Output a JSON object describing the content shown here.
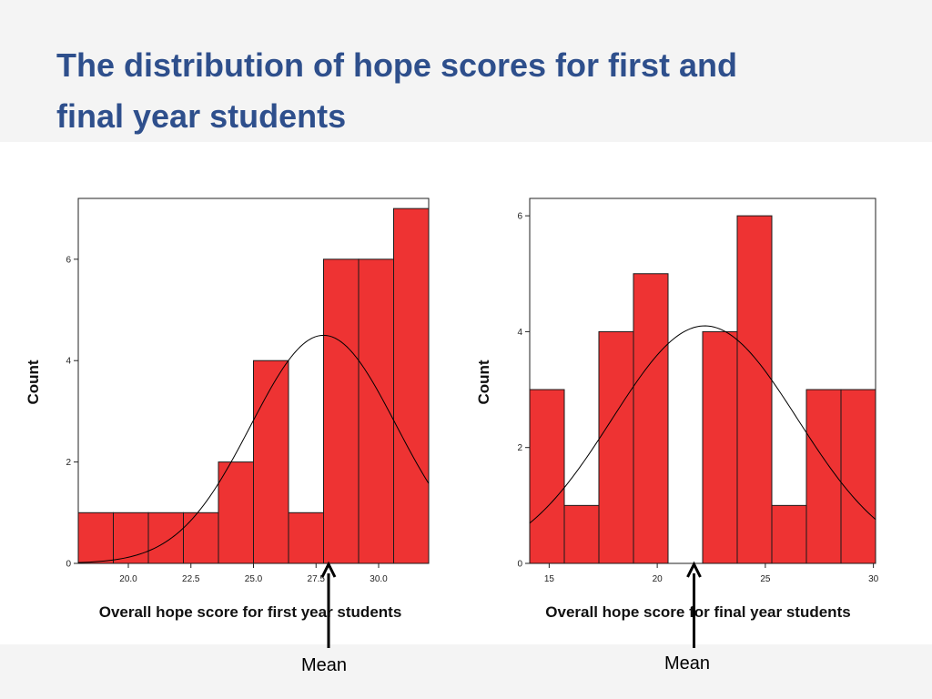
{
  "slide": {
    "title_line1": "The distribution of hope scores for first and",
    "title_line2": "final year students"
  },
  "annotations": {
    "mean_left": "Mean",
    "mean_right": "Mean"
  },
  "colors": {
    "bar_fill": "#ee3333",
    "bar_stroke": "#1a1a1a",
    "title": "#2e4f8c",
    "curve": "#000000"
  },
  "chart_data": [
    {
      "type": "bar",
      "subtype": "histogram",
      "title": "",
      "xlabel": "Overall hope score for first year students",
      "ylabel": "Count",
      "xlim": [
        18,
        32
      ],
      "ylim": [
        0,
        7.2
      ],
      "bins": [
        {
          "x0": 18.0,
          "x1": 19.4,
          "count": 1
        },
        {
          "x0": 19.4,
          "x1": 20.8,
          "count": 1
        },
        {
          "x0": 20.8,
          "x1": 22.2,
          "count": 1
        },
        {
          "x0": 22.2,
          "x1": 23.6,
          "count": 1
        },
        {
          "x0": 23.6,
          "x1": 25.0,
          "count": 2
        },
        {
          "x0": 25.0,
          "x1": 26.4,
          "count": 4
        },
        {
          "x0": 26.4,
          "x1": 27.8,
          "count": 1
        },
        {
          "x0": 27.8,
          "x1": 29.2,
          "count": 6
        },
        {
          "x0": 29.2,
          "x1": 30.6,
          "count": 6
        },
        {
          "x0": 30.6,
          "x1": 32.0,
          "count": 7
        }
      ],
      "x_ticks": [
        20.0,
        22.5,
        25.0,
        27.5,
        30.0
      ],
      "x_tick_labels": [
        "20.0",
        "22.5",
        "25.0",
        "27.5",
        "30.0"
      ],
      "y_ticks": [
        0,
        2,
        4,
        6
      ],
      "y_tick_labels": [
        "0",
        "2",
        "4",
        "6"
      ],
      "normal_curve": {
        "mean": 27.8,
        "sd": 2.9,
        "peak": 4.5
      },
      "mean_marker": 28.0,
      "grid": false
    },
    {
      "type": "bar",
      "subtype": "histogram",
      "title": "",
      "xlabel": "Overall hope score for final year students",
      "ylabel": "Count",
      "xlim": [
        14.1,
        30.1
      ],
      "ylim": [
        0,
        6.3
      ],
      "bins": [
        {
          "x0": 14.1,
          "x1": 15.7,
          "count": 3
        },
        {
          "x0": 15.7,
          "x1": 17.3,
          "count": 1
        },
        {
          "x0": 17.3,
          "x1": 18.9,
          "count": 4
        },
        {
          "x0": 18.9,
          "x1": 20.5,
          "count": 5
        },
        {
          "x0": 20.5,
          "x1": 22.1,
          "count": 0
        },
        {
          "x0": 22.1,
          "x1": 23.7,
          "count": 4
        },
        {
          "x0": 23.7,
          "x1": 25.3,
          "count": 6
        },
        {
          "x0": 25.3,
          "x1": 26.9,
          "count": 1
        },
        {
          "x0": 26.9,
          "x1": 28.5,
          "count": 3
        },
        {
          "x0": 28.5,
          "x1": 30.1,
          "count": 3
        }
      ],
      "x_ticks": [
        15,
        20,
        25,
        30
      ],
      "x_tick_labels": [
        "15",
        "20",
        "25",
        "30"
      ],
      "y_ticks": [
        0,
        2,
        4,
        6
      ],
      "y_tick_labels": [
        "0",
        "2",
        "4",
        "6"
      ],
      "normal_curve": {
        "mean": 22.2,
        "sd": 4.3,
        "peak": 4.1
      },
      "mean_marker": 21.7,
      "grid": false
    }
  ]
}
